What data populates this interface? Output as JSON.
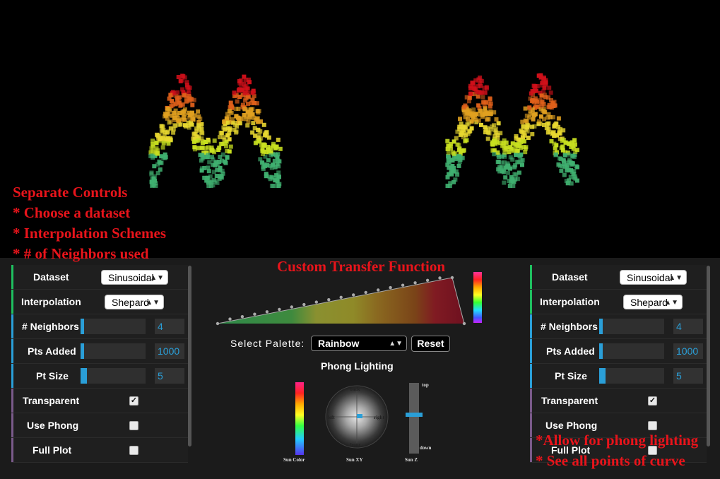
{
  "annotations": {
    "left_lines": [
      "Separate Controls",
      "* Choose a dataset",
      "* Interpolation Schemes",
      "* # of Neighbors used"
    ],
    "transfer_title": "Custom Transfer Function",
    "right_lines": [
      "*Allow for phong lighting",
      "* See all points of curve"
    ]
  },
  "colors": {
    "red_annotation": "#e8141b",
    "accent_blue": "#2a9fd8",
    "bar_green": "#1fbf5f",
    "bar_blue": "#2a9fd8",
    "bar_purple": "#7a5a8a"
  },
  "panels": {
    "left": {
      "dataset_label": "Dataset",
      "dataset_value": "Sinusoidal",
      "interp_label": "Interpolation",
      "interp_value": "Shepard",
      "neighbors_label": "# Neighbors",
      "neighbors_value": "4",
      "neighbors_level": 0.04,
      "pts_label": "Pts Added",
      "pts_value": "1000",
      "pts_level": 0.04,
      "size_label": "Pt Size",
      "size_value": "5",
      "size_level": 0.1,
      "transparent_label": "Transparent",
      "transparent_checked": true,
      "phong_label": "Use Phong",
      "phong_checked": false,
      "full_label": "Full Plot",
      "full_checked": false
    },
    "right": {
      "dataset_label": "Dataset",
      "dataset_value": "Sinusoidal",
      "interp_label": "Interpolation",
      "interp_value": "Shepard",
      "neighbors_label": "# Neighbors",
      "neighbors_value": "4",
      "neighbors_level": 0.04,
      "pts_label": "Pts Added",
      "pts_value": "1000",
      "pts_level": 0.04,
      "size_label": "Pt Size",
      "size_value": "5",
      "size_level": 0.1,
      "transparent_label": "Transparent",
      "transparent_checked": true,
      "phong_label": "Use Phong",
      "phong_checked": false,
      "full_label": "Full Plot",
      "full_checked": false
    }
  },
  "center": {
    "select_palette_label": "Select Palette:",
    "palette_value": "Rainbow",
    "reset_label": "Reset",
    "phong_title": "Phong Lighting",
    "sun_color_label": "Sun Color",
    "sun_xy_label": "Sun XY",
    "sun_z_label": "Sun Z",
    "dir_back": "back",
    "dir_front": "front",
    "dir_left": "left",
    "dir_right": "right",
    "z_top": "top",
    "z_down": "down",
    "sun_z_level": 0.55
  }
}
